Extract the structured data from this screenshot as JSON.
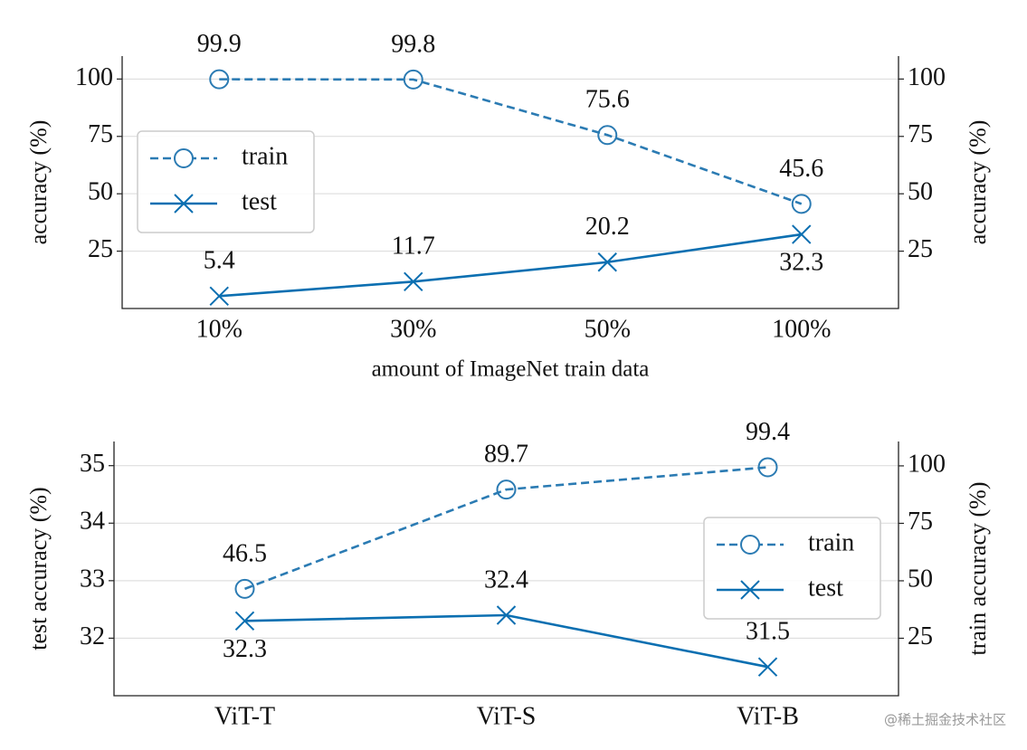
{
  "chart_data": [
    {
      "type": "line",
      "categories": [
        "10%",
        "30%",
        "50%",
        "100%"
      ],
      "xlabel": "amount of ImageNet train data",
      "ylabel": "accuracy (%)",
      "y2label": "accuracy (%)",
      "ylim": [
        0,
        110
      ],
      "yticks": [
        25,
        50,
        75,
        100
      ],
      "y2lim": [
        0,
        110
      ],
      "y2ticks": [
        25,
        50,
        75,
        100
      ],
      "grid": true,
      "legend": "center left",
      "series": [
        {
          "name": "train",
          "color": "#2b7bb3",
          "linestyle": "dashed",
          "marker": "circle",
          "values": [
            99.9,
            99.8,
            75.6,
            45.6
          ]
        },
        {
          "name": "test",
          "color": "#0b6fb1",
          "linestyle": "solid",
          "marker": "x",
          "values": [
            5.4,
            11.7,
            20.2,
            32.3
          ]
        }
      ]
    },
    {
      "type": "line",
      "categories": [
        "ViT-T",
        "ViT-S",
        "ViT-B"
      ],
      "ylabel": "test accuracy (%)",
      "y2label": "train accuracy (%)",
      "ylim": [
        31,
        35.42
      ],
      "yticks": [
        32,
        33,
        34,
        35
      ],
      "y2lim": [
        0,
        110.6
      ],
      "y2ticks": [
        25,
        50,
        75,
        100
      ],
      "grid": true,
      "legend": "center right",
      "series": [
        {
          "name": "train",
          "color": "#2b7bb3",
          "linestyle": "dashed",
          "marker": "circle",
          "axis": "y2",
          "values": [
            46.5,
            89.7,
            99.4
          ]
        },
        {
          "name": "test",
          "color": "#0b6fb1",
          "linestyle": "solid",
          "marker": "x",
          "values": [
            32.3,
            32.4,
            31.5
          ]
        }
      ]
    }
  ],
  "watermark": "@稀土掘金技术社区"
}
